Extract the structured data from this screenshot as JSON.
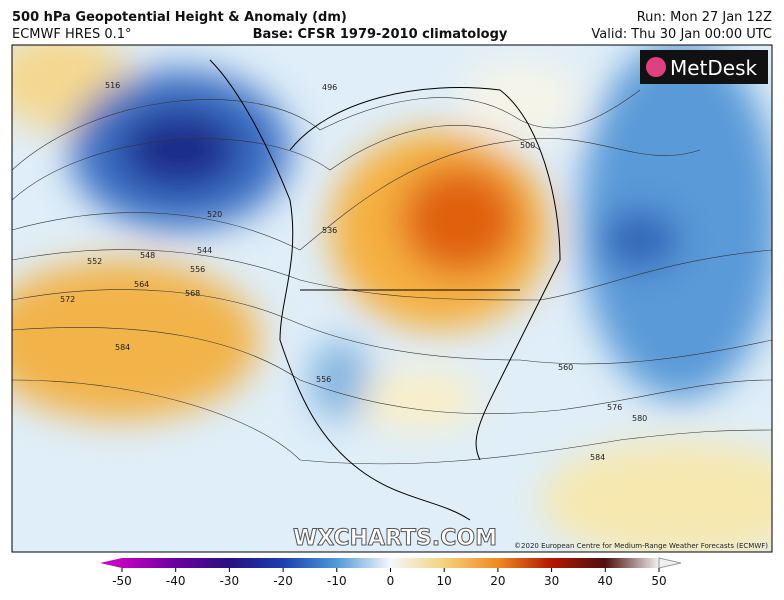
{
  "header": {
    "title": "500 hPa Geopotential Height & Anomaly (dm)",
    "model": "ECMWF HRES 0.1°",
    "base": "Base: CFSR 1979-2010 climatology",
    "run": "Run: Mon 27 Jan 12Z",
    "valid": "Valid: Thu 30 Jan 00:00 UTC"
  },
  "map": {
    "logo": "MetDesk",
    "watermark": "WXCHARTS.COM",
    "copyright": "©2020 European Centre for Medium-Range Weather Forecasts (ECMWF)",
    "contour_labels": [
      "516",
      "496",
      "500",
      "520",
      "536",
      "548",
      "544",
      "552",
      "556",
      "564",
      "568",
      "572",
      "584",
      "556",
      "560",
      "576",
      "580",
      "584"
    ]
  },
  "colorbar": {
    "ticks": [
      -50,
      -40,
      -30,
      -20,
      -10,
      0,
      10,
      20,
      30,
      40,
      50
    ]
  }
}
